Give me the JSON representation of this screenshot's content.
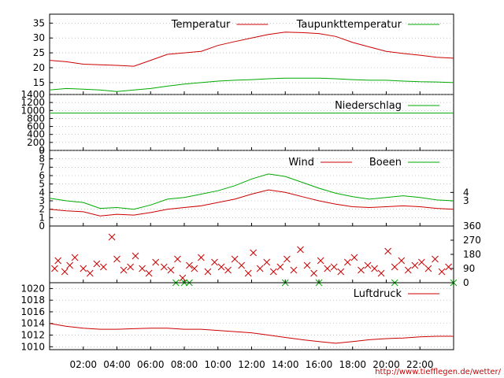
{
  "credit": "http://www.tiefflegen.de/wetter/",
  "colors": {
    "red": "#cc0000",
    "green": "#00aa00",
    "grid": "#a0a0a0"
  },
  "time_axis": {
    "range": [
      0,
      24
    ],
    "ticks": [
      2,
      4,
      6,
      8,
      10,
      12,
      14,
      16,
      18,
      20,
      22
    ],
    "labels": [
      "02:00",
      "04:00",
      "06:00",
      "08:00",
      "10:00",
      "12:00",
      "14:00",
      "16:00",
      "18:00",
      "20:00",
      "22:00"
    ]
  },
  "chart_data": [
    {
      "type": "line",
      "panel": "temperature",
      "ylim": [
        11,
        38
      ],
      "yticks": [
        15,
        20,
        25,
        30,
        35
      ],
      "ytick_labels": [
        "15",
        "20",
        "25",
        "30",
        "35"
      ],
      "legend": "top-right",
      "series": [
        {
          "name": "Temperatur",
          "color": "#cc0000",
          "x": [
            0,
            1,
            2,
            3,
            4,
            5,
            6,
            7,
            8,
            9,
            10,
            11,
            12,
            13,
            14,
            15,
            16,
            17,
            18,
            19,
            20,
            21,
            22,
            23,
            24
          ],
          "y": [
            22.5,
            22,
            21.2,
            21,
            20.8,
            20.5,
            22.5,
            24.5,
            25,
            25.5,
            27.5,
            28.8,
            30,
            31.2,
            32,
            31.8,
            31.5,
            30.5,
            28.5,
            27,
            25.5,
            24.8,
            24.2,
            23.5,
            23.2
          ]
        },
        {
          "name": "Taupunkttemperatur",
          "color": "#00aa00",
          "x": [
            0,
            1,
            2,
            3,
            4,
            5,
            6,
            7,
            8,
            9,
            10,
            11,
            12,
            13,
            14,
            15,
            16,
            17,
            18,
            19,
            20,
            21,
            22,
            23,
            24
          ],
          "y": [
            12.5,
            13,
            12.8,
            12.5,
            12,
            12.5,
            13,
            13.8,
            14.5,
            15,
            15.5,
            15.8,
            16,
            16.3,
            16.5,
            16.5,
            16.5,
            16.3,
            16,
            15.8,
            15.8,
            15.5,
            15.3,
            15.2,
            15
          ]
        }
      ]
    },
    {
      "type": "line",
      "panel": "precipitation",
      "ylim": [
        0,
        1400
      ],
      "yticks": [
        0,
        200,
        400,
        600,
        800,
        1000,
        1200,
        1400
      ],
      "ytick_labels": [
        "0",
        "200",
        "400",
        "600",
        "800",
        "1000",
        "1200",
        "1400"
      ],
      "legend": "top-right",
      "series": [
        {
          "name": "Niederschlag",
          "color": "#00aa00",
          "x": [
            0,
            24
          ],
          "y": [
            935,
            935
          ]
        }
      ]
    },
    {
      "type": "line",
      "panel": "wind",
      "ylim": [
        0,
        9
      ],
      "yticks": [
        0,
        1,
        2,
        3,
        4,
        5,
        6,
        7,
        8,
        9
      ],
      "ytick_labels": [
        "0",
        "1",
        "2",
        "3",
        "4",
        "5",
        "6",
        "7",
        "8",
        "9"
      ],
      "right_ticks": [
        3,
        4
      ],
      "right_tick_labels": [
        "3",
        "4"
      ],
      "legend": "top-right",
      "series": [
        {
          "name": "Wind",
          "color": "#cc0000",
          "x": [
            0,
            1,
            2,
            3,
            4,
            5,
            6,
            7,
            8,
            9,
            10,
            11,
            12,
            13,
            14,
            15,
            16,
            17,
            18,
            19,
            20,
            21,
            22,
            23,
            24
          ],
          "y": [
            2,
            1.8,
            1.7,
            1.2,
            1.4,
            1.3,
            1.6,
            2.0,
            2.2,
            2.4,
            2.8,
            3.2,
            3.8,
            4.3,
            4.0,
            3.5,
            3.0,
            2.6,
            2.3,
            2.2,
            2.3,
            2.4,
            2.3,
            2.1,
            2.0
          ]
        },
        {
          "name": "Boeen",
          "color": "#00aa00",
          "x": [
            0,
            1,
            2,
            3,
            4,
            5,
            6,
            7,
            8,
            9,
            10,
            11,
            12,
            13,
            14,
            15,
            16,
            17,
            18,
            19,
            20,
            21,
            22,
            23,
            24
          ],
          "y": [
            3.3,
            3.0,
            2.8,
            2.1,
            2.2,
            2.0,
            2.5,
            3.2,
            3.4,
            3.8,
            4.2,
            4.8,
            5.6,
            6.2,
            5.9,
            5.2,
            4.5,
            3.9,
            3.5,
            3.2,
            3.4,
            3.6,
            3.4,
            3.1,
            3.0
          ]
        }
      ]
    },
    {
      "type": "scatter",
      "panel": "wind_direction",
      "ylim": [
        0,
        360
      ],
      "right_ticks": [
        0,
        90,
        180,
        270,
        360
      ],
      "right_tick_labels": [
        "0",
        "90",
        "180",
        "270",
        "360"
      ],
      "series": [
        {
          "name": "",
          "color": "#cc0000",
          "marker": "x",
          "x": [
            0.3,
            0.5,
            0.9,
            1.2,
            1.5,
            2.0,
            2.4,
            2.8,
            3.2,
            3.7,
            4.0,
            4.4,
            4.8,
            5.1,
            5.5,
            5.9,
            6.3,
            6.8,
            7.2,
            7.6,
            7.9,
            8.3,
            8.6,
            9.0,
            9.4,
            9.8,
            10.2,
            10.6,
            11.0,
            11.4,
            11.8,
            12.1,
            12.5,
            12.9,
            13.3,
            13.7,
            14.1,
            14.5,
            14.9,
            15.3,
            15.7,
            16.1,
            16.5,
            16.9,
            17.3,
            17.7,
            18.1,
            18.5,
            18.9,
            19.3,
            19.7,
            20.1,
            20.5,
            20.9,
            21.3,
            21.7,
            22.1,
            22.5,
            22.9,
            23.3,
            23.7
          ],
          "y": [
            90,
            140,
            70,
            110,
            160,
            90,
            60,
            120,
            100,
            290,
            150,
            80,
            100,
            170,
            90,
            60,
            130,
            100,
            80,
            150,
            30,
            110,
            90,
            160,
            70,
            130,
            100,
            80,
            150,
            110,
            60,
            190,
            90,
            130,
            70,
            100,
            150,
            80,
            210,
            110,
            60,
            140,
            90,
            100,
            70,
            130,
            160,
            80,
            110,
            90,
            60,
            200,
            100,
            140,
            80,
            110,
            130,
            90,
            150,
            70,
            100
          ]
        },
        {
          "name": "",
          "color": "#00aa00",
          "marker": "x",
          "x": [
            7.5,
            8.0,
            8.3,
            14.0,
            16.0,
            20.5,
            24.0
          ],
          "y": [
            0,
            0,
            0,
            0,
            0,
            0,
            0
          ]
        }
      ]
    },
    {
      "type": "line",
      "panel": "pressure",
      "ylim": [
        1009.5,
        1021
      ],
      "yticks": [
        1010,
        1012,
        1014,
        1016,
        1018,
        1020
      ],
      "ytick_labels": [
        "1010",
        "1012",
        "1014",
        "1016",
        "1018",
        "1020"
      ],
      "legend": "top-right",
      "series": [
        {
          "name": "Luftdruck",
          "color": "#cc0000",
          "x": [
            0,
            1,
            2,
            3,
            4,
            5,
            6,
            7,
            8,
            9,
            10,
            11,
            12,
            13,
            14,
            15,
            16,
            17,
            18,
            19,
            20,
            21,
            22,
            23,
            24
          ],
          "y": [
            1014,
            1013.5,
            1013.2,
            1013,
            1013,
            1013.1,
            1013.2,
            1013.2,
            1013,
            1013,
            1012.8,
            1012.6,
            1012.4,
            1012,
            1011.6,
            1011.2,
            1010.9,
            1010.6,
            1010.9,
            1011.2,
            1011.4,
            1011.5,
            1011.7,
            1011.8,
            1011.8
          ]
        }
      ]
    }
  ]
}
